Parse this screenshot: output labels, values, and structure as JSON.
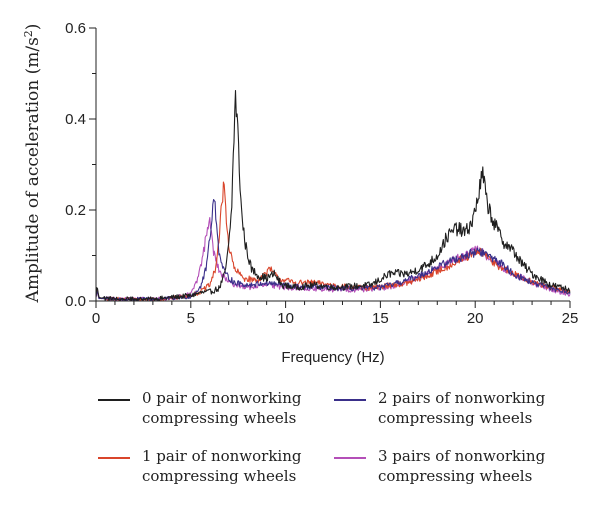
{
  "chart_data": {
    "type": "line",
    "xlabel": "Frequency (Hz)",
    "ylabel": "Amplitude of acceleration (m/s²)",
    "ylabel_main": "Amplitude of acceleration (m/s",
    "ylabel_sup": "2",
    "ylabel_close": ")",
    "xlim": [
      0,
      25
    ],
    "ylim": [
      0,
      0.6
    ],
    "xticks": [
      "0",
      "5",
      "10",
      "15",
      "20",
      "25"
    ],
    "yticks": [
      "0.0",
      "0.2",
      "0.4",
      "0.6"
    ],
    "grid": false,
    "legend_position": "bottom",
    "series": [
      {
        "name": "0 pair of nonworking compressing wheels",
        "color": "#1f1f1f",
        "noise": 0.012,
        "points": [
          [
            0,
            0.01
          ],
          [
            0.05,
            0.035
          ],
          [
            0.15,
            0.008
          ],
          [
            1,
            0.004
          ],
          [
            3,
            0.004
          ],
          [
            4,
            0.008
          ],
          [
            5,
            0.012
          ],
          [
            5.5,
            0.018
          ],
          [
            6,
            0.02
          ],
          [
            6.5,
            0.028
          ],
          [
            6.8,
            0.06
          ],
          [
            7.0,
            0.12
          ],
          [
            7.15,
            0.2
          ],
          [
            7.25,
            0.33
          ],
          [
            7.35,
            0.45
          ],
          [
            7.45,
            0.4
          ],
          [
            7.55,
            0.3
          ],
          [
            7.7,
            0.18
          ],
          [
            7.9,
            0.12
          ],
          [
            8.2,
            0.07
          ],
          [
            8.6,
            0.055
          ],
          [
            9.0,
            0.05
          ],
          [
            9.4,
            0.06
          ],
          [
            9.8,
            0.035
          ],
          [
            10.5,
            0.03
          ],
          [
            11.5,
            0.035
          ],
          [
            12.5,
            0.03
          ],
          [
            13.5,
            0.032
          ],
          [
            14.5,
            0.035
          ],
          [
            15.5,
            0.06
          ],
          [
            16.5,
            0.06
          ],
          [
            17.5,
            0.08
          ],
          [
            18,
            0.1
          ],
          [
            18.5,
            0.14
          ],
          [
            19,
            0.16
          ],
          [
            19.5,
            0.15
          ],
          [
            19.9,
            0.18
          ],
          [
            20.2,
            0.24
          ],
          [
            20.4,
            0.28
          ],
          [
            20.6,
            0.22
          ],
          [
            21,
            0.17
          ],
          [
            21.5,
            0.13
          ],
          [
            22,
            0.11
          ],
          [
            22.5,
            0.08
          ],
          [
            23,
            0.06
          ],
          [
            24,
            0.035
          ],
          [
            25,
            0.025
          ]
        ]
      },
      {
        "name": "1 pair of nonworking compressing wheels",
        "color": "#d9452b",
        "noise": 0.01,
        "points": [
          [
            0,
            0.01
          ],
          [
            0.05,
            0.03
          ],
          [
            0.15,
            0.006
          ],
          [
            1,
            0.004
          ],
          [
            3,
            0.004
          ],
          [
            4,
            0.006
          ],
          [
            5,
            0.012
          ],
          [
            5.5,
            0.02
          ],
          [
            6,
            0.035
          ],
          [
            6.3,
            0.07
          ],
          [
            6.5,
            0.14
          ],
          [
            6.65,
            0.22
          ],
          [
            6.75,
            0.26
          ],
          [
            6.85,
            0.2
          ],
          [
            7.0,
            0.12
          ],
          [
            7.3,
            0.07
          ],
          [
            7.8,
            0.05
          ],
          [
            8.5,
            0.045
          ],
          [
            9.2,
            0.07
          ],
          [
            9.6,
            0.05
          ],
          [
            10.5,
            0.04
          ],
          [
            11.5,
            0.04
          ],
          [
            12.5,
            0.035
          ],
          [
            13.5,
            0.03
          ],
          [
            14.5,
            0.028
          ],
          [
            15.5,
            0.035
          ],
          [
            16.5,
            0.04
          ],
          [
            17.5,
            0.055
          ],
          [
            18.5,
            0.075
          ],
          [
            19.2,
            0.09
          ],
          [
            19.8,
            0.1
          ],
          [
            20.3,
            0.11
          ],
          [
            20.8,
            0.09
          ],
          [
            21.5,
            0.07
          ],
          [
            22.5,
            0.05
          ],
          [
            23.5,
            0.035
          ],
          [
            25,
            0.02
          ]
        ]
      },
      {
        "name": "2 pairs of nonworking compressing wheels",
        "color": "#3a2f8a",
        "noise": 0.01,
        "points": [
          [
            0,
            0.008
          ],
          [
            0.05,
            0.025
          ],
          [
            0.15,
            0.006
          ],
          [
            1,
            0.004
          ],
          [
            3,
            0.004
          ],
          [
            4,
            0.006
          ],
          [
            5,
            0.01
          ],
          [
            5.5,
            0.03
          ],
          [
            5.8,
            0.07
          ],
          [
            6.0,
            0.14
          ],
          [
            6.15,
            0.2
          ],
          [
            6.25,
            0.225
          ],
          [
            6.35,
            0.18
          ],
          [
            6.5,
            0.1
          ],
          [
            6.8,
            0.06
          ],
          [
            7.3,
            0.04
          ],
          [
            8,
            0.035
          ],
          [
            9,
            0.04
          ],
          [
            10,
            0.035
          ],
          [
            11,
            0.03
          ],
          [
            12,
            0.03
          ],
          [
            13,
            0.028
          ],
          [
            14,
            0.028
          ],
          [
            15,
            0.03
          ],
          [
            16,
            0.04
          ],
          [
            17,
            0.055
          ],
          [
            18,
            0.075
          ],
          [
            18.8,
            0.09
          ],
          [
            19.5,
            0.1
          ],
          [
            20.2,
            0.11
          ],
          [
            20.7,
            0.1
          ],
          [
            21.3,
            0.085
          ],
          [
            22,
            0.06
          ],
          [
            23,
            0.04
          ],
          [
            24,
            0.028
          ],
          [
            25,
            0.018
          ]
        ]
      },
      {
        "name": "3 pairs of nonworking compressing wheels",
        "color": "#b44fb8",
        "noise": 0.01,
        "points": [
          [
            0,
            0.008
          ],
          [
            0.05,
            0.022
          ],
          [
            0.15,
            0.006
          ],
          [
            1,
            0.004
          ],
          [
            3,
            0.004
          ],
          [
            4,
            0.006
          ],
          [
            5,
            0.015
          ],
          [
            5.3,
            0.04
          ],
          [
            5.6,
            0.09
          ],
          [
            5.8,
            0.14
          ],
          [
            5.95,
            0.18
          ],
          [
            6.05,
            0.16
          ],
          [
            6.2,
            0.11
          ],
          [
            6.5,
            0.065
          ],
          [
            7,
            0.04
          ],
          [
            7.5,
            0.035
          ],
          [
            8,
            0.03
          ],
          [
            9,
            0.035
          ],
          [
            10,
            0.03
          ],
          [
            11,
            0.028
          ],
          [
            12,
            0.025
          ],
          [
            13,
            0.025
          ],
          [
            14,
            0.025
          ],
          [
            15,
            0.028
          ],
          [
            16,
            0.035
          ],
          [
            17,
            0.05
          ],
          [
            18,
            0.07
          ],
          [
            18.8,
            0.09
          ],
          [
            19.5,
            0.1
          ],
          [
            20,
            0.12
          ],
          [
            20.5,
            0.1
          ],
          [
            21,
            0.085
          ],
          [
            22,
            0.06
          ],
          [
            23,
            0.04
          ],
          [
            24,
            0.025
          ],
          [
            25,
            0.015
          ]
        ]
      }
    ]
  },
  "legend": [
    {
      "text": "0 pair of nonworking\ncompressing wheels",
      "color": "#1f1f1f"
    },
    {
      "text": "2 pairs of nonworking\ncompressing wheels",
      "color": "#3a2f8a"
    },
    {
      "text": "1 pair of nonworking\ncompressing wheels",
      "color": "#d9452b"
    },
    {
      "text": "3 pairs of nonworking\ncompressing wheels",
      "color": "#b44fb8"
    }
  ]
}
